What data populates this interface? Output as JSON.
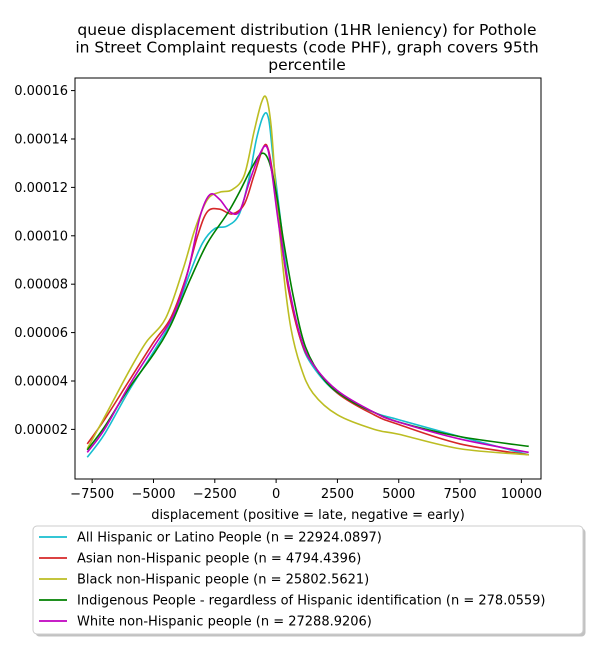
{
  "chart_data": {
    "type": "line",
    "title_lines": [
      "queue displacement distribution (1HR leniency) for Pothole",
      "in Street Complaint  requests (code PHF), graph covers 95th",
      "percentile"
    ],
    "xlabel": "displacement (positive = late, negative = early)",
    "ylabel": "",
    "xlim": [
      -8200,
      10800
    ],
    "ylim": [
      -5e-07,
      0.0001652
    ],
    "x_ticks": [
      -7500,
      -5000,
      -2500,
      0,
      2500,
      5000,
      7500,
      10000
    ],
    "x_tick_labels": [
      "−7500",
      "−5000",
      "−2500",
      "0",
      "2500",
      "5000",
      "7500",
      "10000"
    ],
    "y_ticks": [
      2e-05,
      4e-05,
      6e-05,
      8e-05,
      0.0001,
      0.00012,
      0.00014,
      0.00016
    ],
    "y_tick_labels": [
      "0.00002",
      "0.00004",
      "0.00006",
      "0.00008",
      "0.00010",
      "0.00012",
      "0.00014",
      "0.00016"
    ],
    "grid": false,
    "legend_position": "bottom-center",
    "series": [
      {
        "name": "All Hispanic or Latino People (n = 22924.0897)",
        "color": "#17becf",
        "points": [
          [
            -7700,
            8.5e-06
          ],
          [
            -7000,
            1.8e-05
          ],
          [
            -6000,
            3.6e-05
          ],
          [
            -5000,
            5.2e-05
          ],
          [
            -4200,
            6.6e-05
          ],
          [
            -3500,
            8.5e-05
          ],
          [
            -3000,
            9.7e-05
          ],
          [
            -2500,
            0.000103
          ],
          [
            -2000,
            0.000104
          ],
          [
            -1500,
            0.000109
          ],
          [
            -1100,
            0.000124
          ],
          [
            -800,
            0.00014
          ],
          [
            -500,
            0.00015
          ],
          [
            -300,
            0.000148
          ],
          [
            -100,
            0.00013
          ],
          [
            200,
            0.000105
          ],
          [
            500,
            8e-05
          ],
          [
            1000,
            5.7e-05
          ],
          [
            1500,
            4.6e-05
          ],
          [
            2500,
            3.5e-05
          ],
          [
            4000,
            2.7e-05
          ],
          [
            5000,
            2.4e-05
          ],
          [
            7500,
            1.7e-05
          ],
          [
            10300,
            9.5e-06
          ]
        ]
      },
      {
        "name": "Asian non-Hispanic people (n = 4794.4396)",
        "color": "#d62728",
        "points": [
          [
            -7700,
            1.4e-05
          ],
          [
            -7000,
            2.4e-05
          ],
          [
            -6000,
            4e-05
          ],
          [
            -5000,
            5.6e-05
          ],
          [
            -4300,
            6.6e-05
          ],
          [
            -3700,
            8.2e-05
          ],
          [
            -3200,
            0.0001
          ],
          [
            -2800,
            0.00011
          ],
          [
            -2300,
            0.000111
          ],
          [
            -1800,
            0.000109
          ],
          [
            -1300,
            0.000113
          ],
          [
            -900,
            0.000125
          ],
          [
            -500,
            0.000137
          ],
          [
            -300,
            0.000135
          ],
          [
            -100,
            0.000123
          ],
          [
            200,
            0.0001
          ],
          [
            500,
            7.8e-05
          ],
          [
            1000,
            5.7e-05
          ],
          [
            1500,
            4.7e-05
          ],
          [
            2500,
            3.5e-05
          ],
          [
            4000,
            2.6e-05
          ],
          [
            5000,
            2.2e-05
          ],
          [
            7500,
            1.4e-05
          ],
          [
            10300,
            9.5e-06
          ]
        ]
      },
      {
        "name": "Black non-Hispanic people (n = 25802.5621)",
        "color": "#bcbd22",
        "points": [
          [
            -7700,
            1.2e-05
          ],
          [
            -7000,
            2.5e-05
          ],
          [
            -6000,
            4.4e-05
          ],
          [
            -5300,
            5.6e-05
          ],
          [
            -4500,
            6.6e-05
          ],
          [
            -3800,
            8.6e-05
          ],
          [
            -3300,
            0.000103
          ],
          [
            -2800,
            0.000115
          ],
          [
            -2300,
            0.000118
          ],
          [
            -1800,
            0.000119
          ],
          [
            -1300,
            0.000125
          ],
          [
            -900,
            0.000143
          ],
          [
            -600,
            0.000155
          ],
          [
            -400,
            0.000157
          ],
          [
            -200,
            0.000145
          ],
          [
            0,
            0.000118
          ],
          [
            300,
            8.5e-05
          ],
          [
            600,
            6.2e-05
          ],
          [
            1000,
            4.6e-05
          ],
          [
            1500,
            3.5e-05
          ],
          [
            2500,
            2.6e-05
          ],
          [
            4000,
            2e-05
          ],
          [
            5000,
            1.8e-05
          ],
          [
            7500,
            1.2e-05
          ],
          [
            10300,
            9.5e-06
          ]
        ]
      },
      {
        "name": "Indigenous People - regardless of Hispanic identification (n = 278.0559)",
        "color": "#008000",
        "points": [
          [
            -7700,
            1.15e-05
          ],
          [
            -7000,
            2.1e-05
          ],
          [
            -6000,
            3.7e-05
          ],
          [
            -5000,
            5.1e-05
          ],
          [
            -4300,
            6.3e-05
          ],
          [
            -3500,
            8.2e-05
          ],
          [
            -2800,
            9.7e-05
          ],
          [
            -2000,
            0.000109
          ],
          [
            -1500,
            0.000118
          ],
          [
            -1000,
            0.000128
          ],
          [
            -600,
            0.000134
          ],
          [
            -300,
            0.000131
          ],
          [
            0,
            0.000118
          ],
          [
            300,
            9.8e-05
          ],
          [
            700,
            7.5e-05
          ],
          [
            1200,
            5.4e-05
          ],
          [
            2000,
            4e-05
          ],
          [
            3000,
            3.2e-05
          ],
          [
            4000,
            2.7e-05
          ],
          [
            5000,
            2.3e-05
          ],
          [
            7500,
            1.7e-05
          ],
          [
            10300,
            1.3e-05
          ]
        ]
      },
      {
        "name": "White non-Hispanic people (n = 27288.9206)",
        "color": "#bf00bf",
        "points": [
          [
            -7700,
            1.05e-05
          ],
          [
            -7000,
            2e-05
          ],
          [
            -6000,
            3.8e-05
          ],
          [
            -5000,
            5.4e-05
          ],
          [
            -4200,
            6.7e-05
          ],
          [
            -3600,
            8.5e-05
          ],
          [
            -3100,
            0.000108
          ],
          [
            -2700,
            0.000117
          ],
          [
            -2300,
            0.000115
          ],
          [
            -1900,
            0.00011
          ],
          [
            -1500,
            0.00011
          ],
          [
            -1100,
            0.000122
          ],
          [
            -700,
            0.000133
          ],
          [
            -400,
            0.000137
          ],
          [
            -200,
            0.000128
          ],
          [
            100,
            0.000105
          ],
          [
            500,
            8e-05
          ],
          [
            1000,
            5.8e-05
          ],
          [
            1500,
            4.7e-05
          ],
          [
            2500,
            3.6e-05
          ],
          [
            4000,
            2.7e-05
          ],
          [
            5000,
            2.3e-05
          ],
          [
            7500,
            1.6e-05
          ],
          [
            10300,
            1.05e-05
          ]
        ]
      }
    ]
  }
}
